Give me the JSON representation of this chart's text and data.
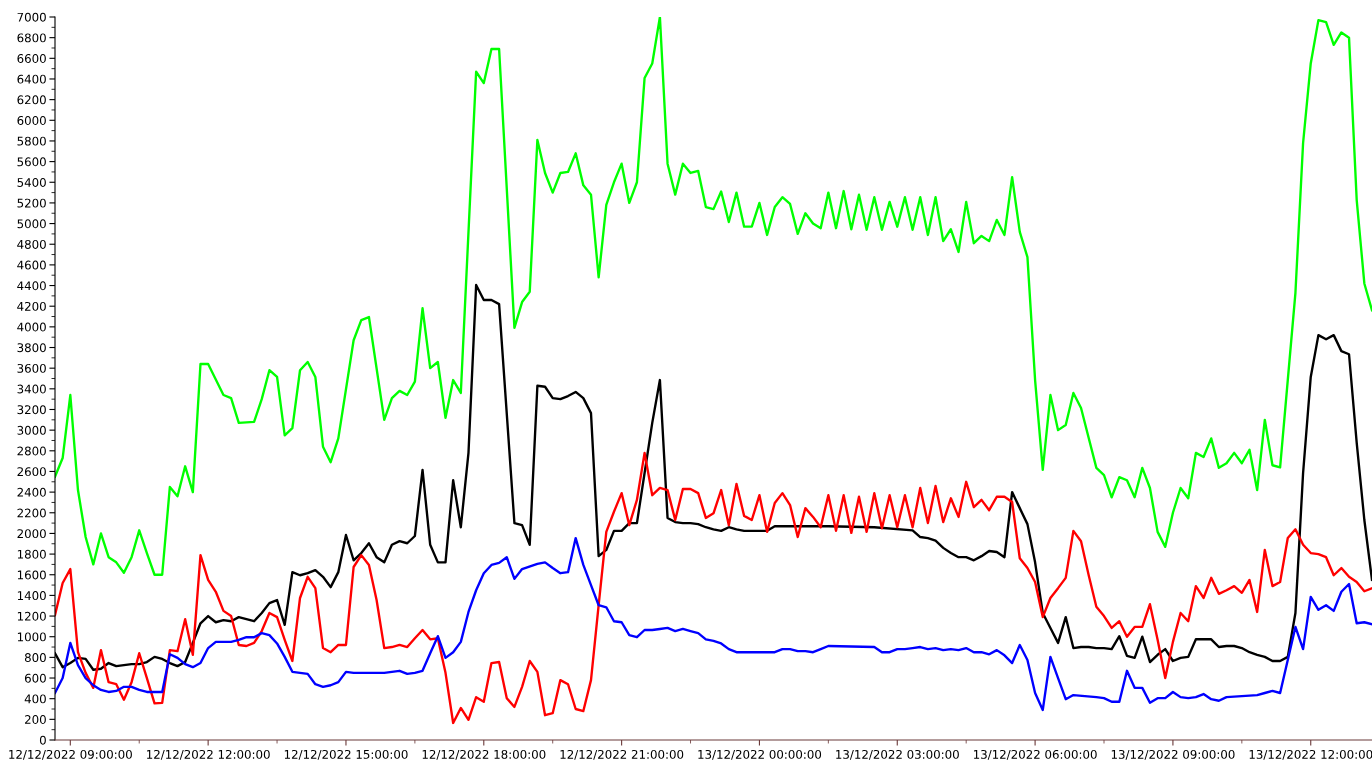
{
  "chart_data": {
    "type": "line",
    "line_style": "solid",
    "grid": false,
    "xlim": [
      "2022-12-12T08:40",
      "2022-12-13T13:20"
    ],
    "xticks": [
      {
        "value": "2022-12-12T09:00",
        "label": "12/12/2022 09:00:00"
      },
      {
        "value": "2022-12-12T10:30",
        "label": null
      },
      {
        "value": "2022-12-12T12:00",
        "label": "12/12/2022 12:00:00"
      },
      {
        "value": "2022-12-12T13:30",
        "label": null
      },
      {
        "value": "2022-12-12T15:00",
        "label": "12/12/2022 15:00:00"
      },
      {
        "value": "2022-12-12T16:30",
        "label": null
      },
      {
        "value": "2022-12-12T18:00",
        "label": "12/12/2022 18:00:00"
      },
      {
        "value": "2022-12-12T19:30",
        "label": null
      },
      {
        "value": "2022-12-12T21:00",
        "label": "12/12/2022 21:00:00"
      },
      {
        "value": "2022-12-12T22:30",
        "label": null
      },
      {
        "value": "2022-12-13T00:00",
        "label": "13/12/2022 00:00:00"
      },
      {
        "value": "2022-12-13T01:30",
        "label": null
      },
      {
        "value": "2022-12-13T03:00",
        "label": "13/12/2022 03:00:00"
      },
      {
        "value": "2022-12-13T04:30",
        "label": null
      },
      {
        "value": "2022-12-13T06:00",
        "label": "13/12/2022 06:00:00"
      },
      {
        "value": "2022-12-13T07:30",
        "label": null
      },
      {
        "value": "2022-12-13T09:00",
        "label": "13/12/2022 09:00:00"
      },
      {
        "value": "2022-12-13T10:30",
        "label": null
      },
      {
        "value": "2022-12-13T12:00",
        "label": "13/12/2022 12:00:00"
      }
    ],
    "ylim": [
      0,
      7000
    ],
    "yticks": [
      0,
      {
        "value": 100,
        "label": null
      },
      200,
      {
        "value": 300,
        "label": null
      },
      400,
      {
        "value": 500,
        "label": null
      },
      600,
      {
        "value": 700,
        "label": null
      },
      800,
      {
        "value": 900,
        "label": null
      },
      1000,
      {
        "value": 1100,
        "label": null
      },
      1200,
      {
        "value": 1300,
        "label": null
      },
      1400,
      {
        "value": 1500,
        "label": null
      },
      1600,
      {
        "value": 1700,
        "label": null
      },
      1800,
      {
        "value": 1900,
        "label": null
      },
      2000,
      {
        "value": 2100,
        "label": null
      },
      2200,
      {
        "value": 2300,
        "label": null
      },
      2400,
      {
        "value": 2500,
        "label": null
      },
      2600,
      {
        "value": 2700,
        "label": null
      },
      2800,
      {
        "value": 2900,
        "label": null
      },
      3000,
      {
        "value": 3100,
        "label": null
      },
      3200,
      {
        "value": 3300,
        "label": null
      },
      3400,
      {
        "value": 3500,
        "label": null
      },
      3600,
      {
        "value": 3700,
        "label": null
      },
      3800,
      {
        "value": 3900,
        "label": null
      },
      4000,
      {
        "value": 4100,
        "label": null
      },
      4200,
      {
        "value": 4300,
        "label": null
      },
      4400,
      {
        "value": 4500,
        "label": null
      },
      4600,
      {
        "value": 4700,
        "label": null
      },
      4800,
      {
        "value": 4900,
        "label": null
      },
      5000,
      {
        "value": 5100,
        "label": null
      },
      5200,
      {
        "value": 5300,
        "label": null
      },
      5400,
      {
        "value": 5500,
        "label": null
      },
      5600,
      {
        "value": 5700,
        "label": null
      },
      5800,
      {
        "value": 5900,
        "label": null
      },
      6000,
      {
        "value": 6100,
        "label": null
      },
      6200,
      {
        "value": 6300,
        "label": null
      },
      6400,
      {
        "value": 6500,
        "label": null
      },
      6600,
      {
        "value": 6700,
        "label": null
      },
      6800,
      {
        "value": 6900,
        "label": null
      },
      7000
    ],
    "series": [
      {
        "color": "#00ff00",
        "x": [
          "2022-12-12T08:40",
          "2022-12-12T08:50",
          "2022-12-12T09:00",
          "2022-12-12T09:10",
          "2022-12-12T09:20",
          "2022-12-12T09:30",
          "2022-12-12T09:40",
          "2022-12-12T09:50",
          "2022-12-12T10:00",
          "2022-12-12T10:10",
          "2022-12-12T10:20",
          "2022-12-12T10:30",
          "2022-12-12T10:40",
          "2022-12-12T10:50",
          "2022-12-12T11:00",
          "2022-12-12T11:10",
          "2022-12-12T11:20",
          "2022-12-12T11:30",
          "2022-12-12T11:40",
          "2022-12-12T11:50",
          "2022-12-12T12:00",
          "2022-12-12T12:20",
          "2022-12-12T12:30",
          "2022-12-12T12:40",
          "2022-12-12T13:00",
          "2022-12-12T13:10",
          "2022-12-12T13:20",
          "2022-12-12T13:30",
          "2022-12-12T13:40",
          "2022-12-12T13:50",
          "2022-12-12T14:00",
          "2022-12-12T14:10",
          "2022-12-12T14:20",
          "2022-12-12T14:30",
          "2022-12-12T14:40",
          "2022-12-12T14:50",
          "2022-12-12T15:10",
          "2022-12-12T15:20",
          "2022-12-12T15:30",
          "2022-12-12T15:50",
          "2022-12-12T16:00",
          "2022-12-12T16:10",
          "2022-12-12T16:20",
          "2022-12-12T16:30",
          "2022-12-12T16:40",
          "2022-12-12T16:50",
          "2022-12-12T17:00",
          "2022-12-12T17:10",
          "2022-12-12T17:20",
          "2022-12-12T17:30",
          "2022-12-12T17:50",
          "2022-12-12T18:00",
          "2022-12-12T18:10",
          "2022-12-12T18:20",
          "2022-12-12T18:40",
          "2022-12-12T18:50",
          "2022-12-12T19:00",
          "2022-12-12T19:10",
          "2022-12-12T19:20",
          "2022-12-12T19:30",
          "2022-12-12T19:40",
          "2022-12-12T19:50",
          "2022-12-12T20:00",
          "2022-12-12T20:10",
          "2022-12-12T20:20",
          "2022-12-12T20:30",
          "2022-12-12T20:40",
          "2022-12-12T20:50",
          "2022-12-12T21:00",
          "2022-12-12T21:10",
          "2022-12-12T21:20",
          "2022-12-12T21:30",
          "2022-12-12T21:40",
          "2022-12-12T21:50",
          "2022-12-12T22:00",
          "2022-12-12T22:10",
          "2022-12-12T22:20",
          "2022-12-12T22:30",
          "2022-12-12T22:40",
          "2022-12-12T22:50",
          "2022-12-12T23:00",
          "2022-12-12T23:10",
          "2022-12-12T23:20",
          "2022-12-12T23:30",
          "2022-12-12T23:40",
          "2022-12-12T23:50",
          "2022-12-13T00:00",
          "2022-12-13T00:10",
          "2022-12-13T00:20",
          "2022-12-13T00:30",
          "2022-12-13T00:40",
          "2022-12-13T00:50",
          "2022-12-13T01:00",
          "2022-12-13T01:10",
          "2022-12-13T01:20",
          "2022-12-13T01:30",
          "2022-12-13T01:40",
          "2022-12-13T01:50",
          "2022-12-13T02:00",
          "2022-12-13T02:10",
          "2022-12-13T02:20",
          "2022-12-13T02:30",
          "2022-12-13T02:40",
          "2022-12-13T02:50",
          "2022-12-13T03:00",
          "2022-12-13T03:10",
          "2022-12-13T03:20",
          "2022-12-13T03:30",
          "2022-12-13T03:40",
          "2022-12-13T03:50",
          "2022-12-13T04:00",
          "2022-12-13T04:10",
          "2022-12-13T04:20",
          "2022-12-13T04:30",
          "2022-12-13T04:40",
          "2022-12-13T04:50",
          "2022-12-13T05:00",
          "2022-12-13T05:10",
          "2022-12-13T05:20",
          "2022-12-13T05:30",
          "2022-12-13T05:40",
          "2022-12-13T05:50",
          "2022-12-13T06:00",
          "2022-12-13T06:10",
          "2022-12-13T06:20",
          "2022-12-13T06:30",
          "2022-12-13T06:40",
          "2022-12-13T06:50",
          "2022-12-13T07:00",
          "2022-12-13T07:20",
          "2022-12-13T07:30",
          "2022-12-13T07:40",
          "2022-12-13T07:50",
          "2022-12-13T08:00",
          "2022-12-13T08:10",
          "2022-12-13T08:20",
          "2022-12-13T08:30",
          "2022-12-13T08:40",
          "2022-12-13T08:50",
          "2022-12-13T09:00",
          "2022-12-13T09:10",
          "2022-12-13T09:20",
          "2022-12-13T09:30",
          "2022-12-13T09:40",
          "2022-12-13T09:50",
          "2022-12-13T10:00",
          "2022-12-13T10:10",
          "2022-12-13T10:20",
          "2022-12-13T10:30",
          "2022-12-13T10:40",
          "2022-12-13T10:50",
          "2022-12-13T11:00",
          "2022-12-13T11:10",
          "2022-12-13T11:20",
          "2022-12-13T11:30",
          "2022-12-13T11:40",
          "2022-12-13T11:50",
          "2022-12-13T12:00",
          "2022-12-13T12:10",
          "2022-12-13T12:20",
          "2022-12-13T12:30",
          "2022-12-13T12:40",
          "2022-12-13T12:50",
          "2022-12-13T13:00",
          "2022-12-13T13:10",
          "2022-12-13T13:20"
        ],
        "values": [
          2550,
          2730,
          3340,
          2420,
          1965,
          1700,
          2000,
          1770,
          1720,
          1620,
          1770,
          2030,
          1810,
          1600,
          1600,
          2450,
          2360,
          2650,
          2400,
          3640,
          3640,
          3340,
          3310,
          3070,
          3080,
          3300,
          3580,
          3515,
          2950,
          3020,
          3580,
          3660,
          3515,
          2840,
          2690,
          2920,
          3870,
          4065,
          4095,
          3100,
          3310,
          3380,
          3340,
          3470,
          4180,
          3600,
          3660,
          3120,
          3485,
          3360,
          6470,
          6360,
          6690,
          6690,
          3990,
          4240,
          4340,
          5810,
          5490,
          5300,
          5490,
          5500,
          5680,
          5370,
          5280,
          4480,
          5180,
          5400,
          5580,
          5200,
          5400,
          6410,
          6550,
          7000,
          5580,
          5280,
          5580,
          5490,
          5510,
          5160,
          5140,
          5310,
          5015,
          5300,
          4970,
          4970,
          5200,
          4890,
          5160,
          5255,
          5190,
          4900,
          5100,
          5000,
          4955,
          5300,
          4955,
          5315,
          4945,
          5280,
          4940,
          5255,
          4940,
          5210,
          4970,
          5255,
          4940,
          5255,
          4890,
          5255,
          4830,
          4945,
          4725,
          5210,
          4810,
          4880,
          4830,
          5035,
          4890,
          5450,
          4920,
          4675,
          3485,
          2615,
          3340,
          3000,
          3050,
          3360,
          3215,
          2635,
          2565,
          2350,
          2545,
          2515,
          2350,
          2635,
          2440,
          2015,
          1870,
          2200,
          2440,
          2340,
          2780,
          2740,
          2920,
          2635,
          2680,
          2780,
          2680,
          2810,
          2420,
          3100,
          2660,
          2640,
          3485,
          4330,
          5780,
          6550,
          6970,
          6950,
          6730,
          6850,
          6800,
          5230,
          4420,
          4160
        ]
      },
      {
        "color": "#000000",
        "x": [
          "2022-12-12T08:40",
          "2022-12-12T08:50",
          "2022-12-12T09:00",
          "2022-12-12T09:10",
          "2022-12-12T09:20",
          "2022-12-12T09:30",
          "2022-12-12T09:40",
          "2022-12-12T09:50",
          "2022-12-12T10:00",
          "2022-12-12T10:10",
          "2022-12-12T10:20",
          "2022-12-12T10:30",
          "2022-12-12T10:40",
          "2022-12-12T10:50",
          "2022-12-12T11:00",
          "2022-12-12T11:10",
          "2022-12-12T11:20",
          "2022-12-12T11:30",
          "2022-12-12T11:40",
          "2022-12-12T11:50",
          "2022-12-12T12:00",
          "2022-12-12T12:10",
          "2022-12-12T12:20",
          "2022-12-12T12:30",
          "2022-12-12T12:40",
          "2022-12-12T12:50",
          "2022-12-12T13:00",
          "2022-12-12T13:10",
          "2022-12-12T13:20",
          "2022-12-12T13:30",
          "2022-12-12T13:40",
          "2022-12-12T13:50",
          "2022-12-12T14:00",
          "2022-12-12T14:10",
          "2022-12-12T14:20",
          "2022-12-12T14:30",
          "2022-12-12T14:40",
          "2022-12-12T14:50",
          "2022-12-12T15:00",
          "2022-12-12T15:10",
          "2022-12-12T15:20",
          "2022-12-12T15:30",
          "2022-12-12T15:40",
          "2022-12-12T15:50",
          "2022-12-12T16:00",
          "2022-12-12T16:10",
          "2022-12-12T16:20",
          "2022-12-12T16:30",
          "2022-12-12T16:40",
          "2022-12-12T16:50",
          "2022-12-12T17:00",
          "2022-12-12T17:10",
          "2022-12-12T17:20",
          "2022-12-12T17:30",
          "2022-12-12T17:40",
          "2022-12-12T17:50",
          "2022-12-12T18:00",
          "2022-12-12T18:10",
          "2022-12-12T18:20",
          "2022-12-12T18:40",
          "2022-12-12T18:50",
          "2022-12-12T19:00",
          "2022-12-12T19:10",
          "2022-12-12T19:20",
          "2022-12-12T19:30",
          "2022-12-12T19:40",
          "2022-12-12T19:50",
          "2022-12-12T20:00",
          "2022-12-12T20:10",
          "2022-12-12T20:20",
          "2022-12-12T20:30",
          "2022-12-12T20:40",
          "2022-12-12T20:50",
          "2022-12-12T21:00",
          "2022-12-12T21:10",
          "2022-12-12T21:20",
          "2022-12-12T21:30",
          "2022-12-12T21:40",
          "2022-12-12T21:50",
          "2022-12-12T22:00",
          "2022-12-12T22:10",
          "2022-12-12T22:20",
          "2022-12-12T22:30",
          "2022-12-12T22:40",
          "2022-12-12T22:50",
          "2022-12-12T23:00",
          "2022-12-12T23:10",
          "2022-12-12T23:20",
          "2022-12-12T23:30",
          "2022-12-12T23:40",
          "2022-12-13T00:10",
          "2022-12-13T00:20",
          "2022-12-13T01:30",
          "2022-12-13T02:30",
          "2022-12-13T03:20",
          "2022-12-13T03:30",
          "2022-12-13T03:40",
          "2022-12-13T03:50",
          "2022-12-13T04:00",
          "2022-12-13T04:10",
          "2022-12-13T04:20",
          "2022-12-13T04:30",
          "2022-12-13T04:40",
          "2022-12-13T04:50",
          "2022-12-13T05:00",
          "2022-12-13T05:10",
          "2022-12-13T05:20",
          "2022-12-13T05:30",
          "2022-12-13T05:40",
          "2022-12-13T05:50",
          "2022-12-13T06:00",
          "2022-12-13T06:10",
          "2022-12-13T06:20",
          "2022-12-13T06:30",
          "2022-12-13T06:40",
          "2022-12-13T06:50",
          "2022-12-13T07:00",
          "2022-12-13T07:10",
          "2022-12-13T07:20",
          "2022-12-13T07:30",
          "2022-12-13T07:40",
          "2022-12-13T07:50",
          "2022-12-13T08:00",
          "2022-12-13T08:10",
          "2022-12-13T08:20",
          "2022-12-13T08:30",
          "2022-12-13T08:40",
          "2022-12-13T08:50",
          "2022-12-13T09:00",
          "2022-12-13T09:10",
          "2022-12-13T09:20",
          "2022-12-13T09:30",
          "2022-12-13T09:40",
          "2022-12-13T09:50",
          "2022-12-13T10:00",
          "2022-12-13T10:10",
          "2022-12-13T10:20",
          "2022-12-13T10:30",
          "2022-12-13T10:40",
          "2022-12-13T10:50",
          "2022-12-13T11:00",
          "2022-12-13T11:10",
          "2022-12-13T11:20",
          "2022-12-13T11:30",
          "2022-12-13T11:40",
          "2022-12-13T11:50",
          "2022-12-13T12:00",
          "2022-12-13T12:10",
          "2022-12-13T12:20",
          "2022-12-13T12:30",
          "2022-12-13T12:40",
          "2022-12-13T12:50",
          "2022-12-13T13:00",
          "2022-12-13T13:10",
          "2022-12-13T13:20"
        ],
        "values": [
          840,
          705,
          745,
          795,
          785,
          680,
          690,
          745,
          715,
          725,
          735,
          735,
          755,
          805,
          785,
          745,
          715,
          755,
          940,
          1130,
          1200,
          1140,
          1160,
          1150,
          1190,
          1170,
          1150,
          1230,
          1325,
          1355,
          1115,
          1625,
          1595,
          1615,
          1645,
          1580,
          1480,
          1625,
          1985,
          1740,
          1810,
          1905,
          1770,
          1720,
          1890,
          1925,
          1905,
          1975,
          2615,
          1890,
          1720,
          1720,
          2515,
          2060,
          2780,
          4405,
          4260,
          4260,
          4220,
          2100,
          2080,
          1890,
          3430,
          3420,
          3310,
          3300,
          3330,
          3370,
          3310,
          3165,
          1780,
          1840,
          2025,
          2025,
          2100,
          2100,
          2585,
          3070,
          3485,
          2150,
          2110,
          2100,
          2100,
          2090,
          2060,
          2040,
          2025,
          2060,
          2040,
          2025,
          2025,
          2070,
          2070,
          2060,
          2030,
          1965,
          1955,
          1930,
          1860,
          1810,
          1770,
          1770,
          1740,
          1780,
          1830,
          1820,
          1770,
          2400,
          2245,
          2090,
          1720,
          1230,
          1085,
          940,
          1190,
          890,
          900,
          900,
          890,
          890,
          880,
          1005,
          815,
          795,
          1000,
          755,
          825,
          880,
          765,
          795,
          805,
          975,
          975,
          975,
          900,
          910,
          910,
          890,
          850,
          825,
          805,
          765,
          765,
          805,
          1230,
          2585,
          3515,
          3920,
          3880,
          3920,
          3765,
          3735,
          2880,
          2130,
          1550
        ]
      },
      {
        "color": "#ff0000",
        "x": [
          "2022-12-12T08:40",
          "2022-12-12T08:50",
          "2022-12-12T09:00",
          "2022-12-12T09:10",
          "2022-12-12T09:20",
          "2022-12-12T09:30",
          "2022-12-12T09:40",
          "2022-12-12T09:50",
          "2022-12-12T10:00",
          "2022-12-12T10:10",
          "2022-12-12T10:20",
          "2022-12-12T10:30",
          "2022-12-12T10:40",
          "2022-12-12T10:50",
          "2022-12-12T11:00",
          "2022-12-12T11:10",
          "2022-12-12T11:20",
          "2022-12-12T11:30",
          "2022-12-12T11:40",
          "2022-12-12T11:50",
          "2022-12-12T12:00",
          "2022-12-12T12:10",
          "2022-12-12T12:20",
          "2022-12-12T12:30",
          "2022-12-12T12:40",
          "2022-12-12T12:50",
          "2022-12-12T13:00",
          "2022-12-12T13:10",
          "2022-12-12T13:20",
          "2022-12-12T13:30",
          "2022-12-12T13:40",
          "2022-12-12T13:50",
          "2022-12-12T14:00",
          "2022-12-12T14:10",
          "2022-12-12T14:20",
          "2022-12-12T14:30",
          "2022-12-12T14:40",
          "2022-12-12T14:50",
          "2022-12-12T15:00",
          "2022-12-12T15:10",
          "2022-12-12T15:20",
          "2022-12-12T15:30",
          "2022-12-12T15:40",
          "2022-12-12T15:50",
          "2022-12-12T16:00",
          "2022-12-12T16:10",
          "2022-12-12T16:20",
          "2022-12-12T16:30",
          "2022-12-12T16:40",
          "2022-12-12T16:50",
          "2022-12-12T17:00",
          "2022-12-12T17:10",
          "2022-12-12T17:20",
          "2022-12-12T17:30",
          "2022-12-12T17:40",
          "2022-12-12T17:50",
          "2022-12-12T18:00",
          "2022-12-12T18:10",
          "2022-12-12T18:20",
          "2022-12-12T18:30",
          "2022-12-12T18:40",
          "2022-12-12T18:50",
          "2022-12-12T19:00",
          "2022-12-12T19:10",
          "2022-12-12T19:20",
          "2022-12-12T19:30",
          "2022-12-12T19:40",
          "2022-12-12T19:50",
          "2022-12-12T20:00",
          "2022-12-12T20:10",
          "2022-12-12T20:20",
          "2022-12-12T20:30",
          "2022-12-12T20:40",
          "2022-12-12T20:50",
          "2022-12-12T21:00",
          "2022-12-12T21:10",
          "2022-12-12T21:20",
          "2022-12-12T21:30",
          "2022-12-12T21:40",
          "2022-12-12T21:50",
          "2022-12-12T22:00",
          "2022-12-12T22:10",
          "2022-12-12T22:20",
          "2022-12-12T22:30",
          "2022-12-12T22:40",
          "2022-12-12T22:50",
          "2022-12-12T23:00",
          "2022-12-12T23:10",
          "2022-12-12T23:20",
          "2022-12-12T23:30",
          "2022-12-12T23:40",
          "2022-12-12T23:50",
          "2022-12-13T00:00",
          "2022-12-13T00:10",
          "2022-12-13T00:20",
          "2022-12-13T00:30",
          "2022-12-13T00:40",
          "2022-12-13T00:50",
          "2022-12-13T01:00",
          "2022-12-13T01:10",
          "2022-12-13T01:20",
          "2022-12-13T01:30",
          "2022-12-13T01:40",
          "2022-12-13T01:50",
          "2022-12-13T02:00",
          "2022-12-13T02:10",
          "2022-12-13T02:20",
          "2022-12-13T02:30",
          "2022-12-13T02:40",
          "2022-12-13T02:50",
          "2022-12-13T03:00",
          "2022-12-13T03:10",
          "2022-12-13T03:20",
          "2022-12-13T03:30",
          "2022-12-13T03:40",
          "2022-12-13T03:50",
          "2022-12-13T04:00",
          "2022-12-13T04:10",
          "2022-12-13T04:20",
          "2022-12-13T04:30",
          "2022-12-13T04:40",
          "2022-12-13T04:50",
          "2022-12-13T05:00",
          "2022-12-13T05:10",
          "2022-12-13T05:20",
          "2022-12-13T05:30",
          "2022-12-13T05:40",
          "2022-12-13T05:50",
          "2022-12-13T06:00",
          "2022-12-13T06:10",
          "2022-12-13T06:20",
          "2022-12-13T06:30",
          "2022-12-13T06:40",
          "2022-12-13T06:50",
          "2022-12-13T07:00",
          "2022-12-13T07:10",
          "2022-12-13T07:20",
          "2022-12-13T07:30",
          "2022-12-13T07:40",
          "2022-12-13T07:50",
          "2022-12-13T08:00",
          "2022-12-13T08:10",
          "2022-12-13T08:20",
          "2022-12-13T08:30",
          "2022-12-13T08:40",
          "2022-12-13T08:50",
          "2022-12-13T09:00",
          "2022-12-13T09:10",
          "2022-12-13T09:20",
          "2022-12-13T09:30",
          "2022-12-13T09:40",
          "2022-12-13T09:50",
          "2022-12-13T10:00",
          "2022-12-13T10:10",
          "2022-12-13T10:20",
          "2022-12-13T10:30",
          "2022-12-13T10:40",
          "2022-12-13T10:50",
          "2022-12-13T11:00",
          "2022-12-13T11:10",
          "2022-12-13T11:20",
          "2022-12-13T11:30",
          "2022-12-13T11:40",
          "2022-12-13T11:50",
          "2022-12-13T12:00",
          "2022-12-13T12:10",
          "2022-12-13T12:20",
          "2022-12-13T12:30",
          "2022-12-13T12:40",
          "2022-12-13T12:50",
          "2022-12-13T13:00",
          "2022-12-13T13:10",
          "2022-12-13T13:20"
        ],
        "values": [
          1210,
          1520,
          1655,
          850,
          650,
          505,
          870,
          560,
          540,
          390,
          560,
          840,
          600,
          355,
          360,
          870,
          860,
          1170,
          825,
          1790,
          1550,
          1435,
          1250,
          1200,
          920,
          910,
          940,
          1055,
          1230,
          1190,
          970,
          765,
          1375,
          1580,
          1470,
          890,
          850,
          920,
          920,
          1675,
          1790,
          1695,
          1355,
          890,
          900,
          920,
          900,
          985,
          1065,
          975,
          985,
          650,
          165,
          310,
          195,
          415,
          370,
          745,
          755,
          405,
          320,
          515,
          765,
          660,
          240,
          260,
          580,
          540,
          300,
          280,
          580,
          1305,
          2015,
          2210,
          2390,
          2080,
          2325,
          2780,
          2370,
          2440,
          2420,
          2130,
          2430,
          2430,
          2390,
          2150,
          2195,
          2420,
          2080,
          2480,
          2170,
          2130,
          2370,
          2015,
          2295,
          2390,
          2275,
          1965,
          2245,
          2160,
          2060,
          2370,
          2025,
          2370,
          2005,
          2355,
          2015,
          2390,
          2050,
          2370,
          2060,
          2370,
          2060,
          2440,
          2100,
          2460,
          2110,
          2340,
          2160,
          2500,
          2255,
          2325,
          2225,
          2355,
          2355,
          2305,
          1760,
          1665,
          1530,
          1190,
          1375,
          1470,
          1570,
          2025,
          1925,
          1595,
          1290,
          1200,
          1085,
          1150,
          1000,
          1095,
          1095,
          1315,
          970,
          600,
          950,
          1230,
          1150,
          1490,
          1375,
          1570,
          1415,
          1450,
          1490,
          1425,
          1550,
          1240,
          1840,
          1490,
          1530,
          1955,
          2040,
          1890,
          1810,
          1800,
          1770,
          1595,
          1665,
          1580,
          1530,
          1440,
          1470
        ]
      },
      {
        "color": "#0000ff",
        "x": [
          "2022-12-12T08:40",
          "2022-12-12T08:50",
          "2022-12-12T09:00",
          "2022-12-12T09:10",
          "2022-12-12T09:20",
          "2022-12-12T09:30",
          "2022-12-12T09:40",
          "2022-12-12T09:50",
          "2022-12-12T10:00",
          "2022-12-12T10:10",
          "2022-12-12T10:20",
          "2022-12-12T10:30",
          "2022-12-12T10:40",
          "2022-12-12T10:50",
          "2022-12-12T11:00",
          "2022-12-12T11:10",
          "2022-12-12T11:20",
          "2022-12-12T11:30",
          "2022-12-12T11:40",
          "2022-12-12T11:50",
          "2022-12-12T12:00",
          "2022-12-12T12:10",
          "2022-12-12T12:20",
          "2022-12-12T12:30",
          "2022-12-12T12:40",
          "2022-12-12T12:50",
          "2022-12-12T13:00",
          "2022-12-12T13:10",
          "2022-12-12T13:20",
          "2022-12-12T13:30",
          "2022-12-12T13:40",
          "2022-12-12T13:50",
          "2022-12-12T14:00",
          "2022-12-12T14:10",
          "2022-12-12T14:20",
          "2022-12-12T14:30",
          "2022-12-12T14:40",
          "2022-12-12T14:50",
          "2022-12-12T15:00",
          "2022-12-12T15:10",
          "2022-12-12T15:50",
          "2022-12-12T16:00",
          "2022-12-12T16:10",
          "2022-12-12T16:20",
          "2022-12-12T16:30",
          "2022-12-12T16:40",
          "2022-12-12T16:50",
          "2022-12-12T17:00",
          "2022-12-12T17:10",
          "2022-12-12T17:20",
          "2022-12-12T17:30",
          "2022-12-12T17:40",
          "2022-12-12T17:50",
          "2022-12-12T18:00",
          "2022-12-12T18:10",
          "2022-12-12T18:20",
          "2022-12-12T18:30",
          "2022-12-12T18:40",
          "2022-12-12T18:50",
          "2022-12-12T19:10",
          "2022-12-12T19:20",
          "2022-12-12T19:30",
          "2022-12-12T19:40",
          "2022-12-12T19:50",
          "2022-12-12T20:00",
          "2022-12-12T20:10",
          "2022-12-12T20:20",
          "2022-12-12T20:30",
          "2022-12-12T20:40",
          "2022-12-12T20:50",
          "2022-12-12T21:00",
          "2022-12-12T21:10",
          "2022-12-12T21:20",
          "2022-12-12T21:30",
          "2022-12-12T21:40",
          "2022-12-12T21:50",
          "2022-12-12T22:00",
          "2022-12-12T22:10",
          "2022-12-12T22:20",
          "2022-12-12T22:30",
          "2022-12-12T22:40",
          "2022-12-12T22:50",
          "2022-12-12T23:00",
          "2022-12-12T23:10",
          "2022-12-12T23:20",
          "2022-12-12T23:30",
          "2022-12-13T00:20",
          "2022-12-13T00:30",
          "2022-12-13T00:40",
          "2022-12-13T00:50",
          "2022-12-13T01:00",
          "2022-12-13T01:10",
          "2022-12-13T01:20",
          "2022-12-13T01:30",
          "2022-12-13T02:30",
          "2022-12-13T02:40",
          "2022-12-13T02:50",
          "2022-12-13T03:00",
          "2022-12-13T03:10",
          "2022-12-13T03:20",
          "2022-12-13T03:30",
          "2022-12-13T03:40",
          "2022-12-13T03:50",
          "2022-12-13T04:00",
          "2022-12-13T04:10",
          "2022-12-13T04:20",
          "2022-12-13T04:30",
          "2022-12-13T04:40",
          "2022-12-13T04:50",
          "2022-12-13T05:00",
          "2022-12-13T05:10",
          "2022-12-13T05:20",
          "2022-12-13T05:30",
          "2022-12-13T05:40",
          "2022-12-13T05:50",
          "2022-12-13T06:00",
          "2022-12-13T06:10",
          "2022-12-13T06:20",
          "2022-12-13T06:30",
          "2022-12-13T06:40",
          "2022-12-13T06:50",
          "2022-12-13T07:20",
          "2022-12-13T07:30",
          "2022-12-13T07:40",
          "2022-12-13T07:50",
          "2022-12-13T08:00",
          "2022-12-13T08:10",
          "2022-12-13T08:20",
          "2022-12-13T08:30",
          "2022-12-13T08:40",
          "2022-12-13T08:50",
          "2022-12-13T09:00",
          "2022-12-13T09:10",
          "2022-12-13T09:20",
          "2022-12-13T09:30",
          "2022-12-13T09:40",
          "2022-12-13T09:50",
          "2022-12-13T10:00",
          "2022-12-13T10:10",
          "2022-12-13T10:50",
          "2022-12-13T11:00",
          "2022-12-13T11:10",
          "2022-12-13T11:20",
          "2022-12-13T11:30",
          "2022-12-13T11:40",
          "2022-12-13T11:50",
          "2022-12-13T12:00",
          "2022-12-13T12:10",
          "2022-12-13T12:20",
          "2022-12-13T12:30",
          "2022-12-13T12:40",
          "2022-12-13T12:50",
          "2022-12-13T13:00",
          "2022-12-13T13:10",
          "2022-12-13T13:20"
        ],
        "values": [
          455,
          600,
          940,
          725,
          600,
          530,
          485,
          465,
          475,
          515,
          515,
          485,
          465,
          465,
          465,
          830,
          795,
          735,
          705,
          745,
          890,
          950,
          950,
          950,
          970,
          995,
          995,
          1035,
          1015,
          935,
          805,
          660,
          650,
          640,
          540,
          515,
          530,
          560,
          660,
          650,
          650,
          660,
          670,
          640,
          650,
          670,
          840,
          1005,
          795,
          850,
          950,
          1240,
          1450,
          1615,
          1695,
          1715,
          1770,
          1560,
          1655,
          1705,
          1720,
          1665,
          1615,
          1625,
          1955,
          1695,
          1500,
          1305,
          1285,
          1150,
          1140,
          1015,
          995,
          1065,
          1065,
          1075,
          1085,
          1055,
          1075,
          1055,
          1035,
          975,
          960,
          935,
          880,
          850,
          850,
          880,
          880,
          860,
          860,
          850,
          880,
          910,
          900,
          850,
          850,
          880,
          880,
          890,
          900,
          880,
          890,
          870,
          880,
          870,
          890,
          850,
          850,
          830,
          870,
          820,
          745,
          920,
          775,
          455,
          290,
          805,
          600,
          395,
          435,
          415,
          405,
          370,
          370,
          670,
          505,
          505,
          360,
          405,
          405,
          465,
          415,
          405,
          415,
          445,
          395,
          380,
          415,
          435,
          455,
          475,
          455,
          775,
          1095,
          880,
          1385,
          1260,
          1305,
          1250,
          1435,
          1510,
          1130,
          1140,
          1120
        ]
      }
    ]
  }
}
